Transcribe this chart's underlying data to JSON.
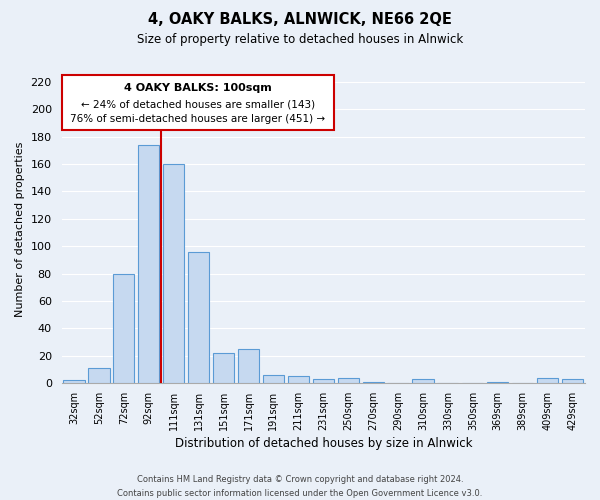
{
  "title": "4, OAKY BALKS, ALNWICK, NE66 2QE",
  "subtitle": "Size of property relative to detached houses in Alnwick",
  "xlabel": "Distribution of detached houses by size in Alnwick",
  "ylabel": "Number of detached properties",
  "bar_labels": [
    "32sqm",
    "52sqm",
    "72sqm",
    "92sqm",
    "111sqm",
    "131sqm",
    "151sqm",
    "171sqm",
    "191sqm",
    "211sqm",
    "231sqm",
    "250sqm",
    "270sqm",
    "290sqm",
    "310sqm",
    "330sqm",
    "350sqm",
    "369sqm",
    "389sqm",
    "409sqm",
    "429sqm"
  ],
  "bar_values": [
    2,
    11,
    80,
    174,
    160,
    96,
    22,
    25,
    6,
    5,
    3,
    4,
    1,
    0,
    3,
    0,
    0,
    1,
    0,
    4,
    3
  ],
  "bar_color": "#c6d9f0",
  "bar_edge_color": "#5b9bd5",
  "vline_color": "#cc0000",
  "vline_x_index": 3.5,
  "ylim": [
    0,
    225
  ],
  "yticks": [
    0,
    20,
    40,
    60,
    80,
    100,
    120,
    140,
    160,
    180,
    200,
    220
  ],
  "annotation_title": "4 OAKY BALKS: 100sqm",
  "annotation_line1": "← 24% of detached houses are smaller (143)",
  "annotation_line2": "76% of semi-detached houses are larger (451) →",
  "annotation_box_color": "#ffffff",
  "annotation_box_edge": "#cc0000",
  "footer_line1": "Contains HM Land Registry data © Crown copyright and database right 2024.",
  "footer_line2": "Contains public sector information licensed under the Open Government Licence v3.0.",
  "background_color": "#eaf0f8",
  "grid_color": "#ffffff"
}
